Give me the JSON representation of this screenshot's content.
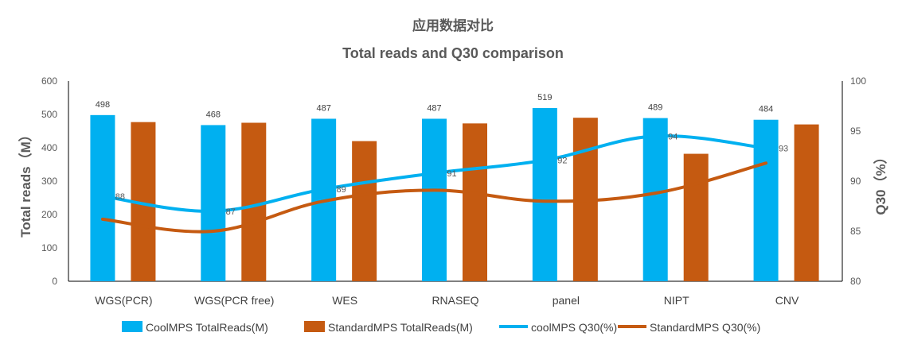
{
  "chart_data": {
    "type": "bar",
    "title": "应用数据对比",
    "subtitle": "Total reads and Q30 comparison",
    "categories": [
      "WGS(PCR)",
      "WGS(PCR free)",
      "WES",
      "RNASEQ",
      "panel",
      "NIPT",
      "CNV"
    ],
    "ylabel": "Total reads（M）",
    "y2label": "Q30（%）",
    "ylim": [
      0,
      600
    ],
    "y_ticks": [
      "0",
      "100",
      "200",
      "300",
      "400",
      "500",
      "600"
    ],
    "y2lim": [
      80,
      100
    ],
    "y2_ticks": [
      "80",
      "85",
      "90",
      "95",
      "100"
    ],
    "grid": false,
    "legend_position": "bottom",
    "series": [
      {
        "name": "CoolMPS TotalReads(M)",
        "kind": "bar",
        "axis": "left",
        "color": "#00B0F0",
        "values": [
          498,
          468,
          487,
          487,
          519,
          489,
          484
        ],
        "labels": [
          "498",
          "468",
          "487",
          "487",
          "519",
          "489",
          "484"
        ]
      },
      {
        "name": "StandardMPS TotalReads(M)",
        "kind": "bar",
        "axis": "left",
        "color": "#C55A11",
        "values": [
          477,
          475,
          420,
          473,
          490,
          382,
          470
        ]
      },
      {
        "name": "coolMPS Q30(%)",
        "kind": "line",
        "axis": "right",
        "color": "#00B0F0",
        "values": [
          88.5,
          87.0,
          89.2,
          90.8,
          92.1,
          94.5,
          93.3
        ],
        "labels": [
          "88",
          "87",
          "89",
          "91",
          "92",
          "94",
          "93"
        ]
      },
      {
        "name": "StandardMPS Q30(%)",
        "kind": "line",
        "axis": "right",
        "color": "#C55A11",
        "values": [
          86.2,
          85.0,
          88.0,
          89.1,
          88.0,
          88.8,
          91.8
        ]
      }
    ]
  }
}
